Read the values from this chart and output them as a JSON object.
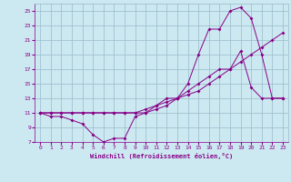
{
  "xlabel": "Windchill (Refroidissement éolien,°C)",
  "background_color": "#cce8f0",
  "line_color": "#880088",
  "grid_color": "#99bbcc",
  "xlim": [
    -0.5,
    23.5
  ],
  "ylim": [
    7,
    26
  ],
  "xticks": [
    0,
    1,
    2,
    3,
    4,
    5,
    6,
    7,
    8,
    9,
    10,
    11,
    12,
    13,
    14,
    15,
    16,
    17,
    18,
    19,
    20,
    21,
    22,
    23
  ],
  "yticks": [
    7,
    9,
    11,
    13,
    15,
    17,
    19,
    21,
    23,
    25
  ],
  "line1_x": [
    0,
    1,
    2,
    3,
    4,
    5,
    6,
    7,
    8,
    9,
    10,
    11,
    12,
    13,
    14,
    15,
    16,
    17,
    18,
    19,
    20,
    21,
    22,
    23
  ],
  "line1_y": [
    11,
    10.5,
    10.5,
    10,
    9.5,
    8,
    7,
    7.5,
    7.5,
    10.5,
    11,
    12,
    13,
    13,
    14,
    15,
    16,
    17,
    17,
    19.5,
    14.5,
    13,
    13,
    13
  ],
  "line2_x": [
    0,
    1,
    2,
    3,
    4,
    5,
    6,
    7,
    8,
    9,
    10,
    11,
    12,
    13,
    14,
    15,
    16,
    17,
    18,
    19,
    20,
    21,
    22,
    23
  ],
  "line2_y": [
    11,
    11,
    11,
    11,
    11,
    11,
    11,
    11,
    11,
    11,
    11.5,
    12,
    12.5,
    13,
    13.5,
    14,
    15,
    16,
    17,
    18,
    19,
    20,
    21,
    22
  ],
  "line3_x": [
    0,
    1,
    2,
    3,
    4,
    5,
    6,
    7,
    8,
    9,
    10,
    11,
    12,
    13,
    14,
    15,
    16,
    17,
    18,
    19,
    20,
    21,
    22,
    23
  ],
  "line3_y": [
    11,
    11,
    11,
    11,
    11,
    11,
    11,
    11,
    11,
    11,
    11,
    11.5,
    12,
    13,
    15,
    19,
    22.5,
    22.5,
    25,
    25.5,
    24,
    19,
    13,
    13
  ]
}
